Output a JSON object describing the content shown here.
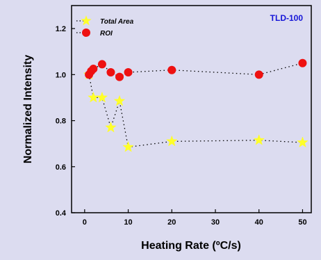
{
  "colors": {
    "background": "#dcdcf0",
    "total_area": "#ffff2a",
    "roi": "#ee1111",
    "annotation": "#1515d8"
  },
  "icons": {
    "total_area": "star-marker-icon",
    "roi": "circle-marker-icon"
  },
  "chart_data": {
    "type": "scatter",
    "xlabel": "Heating Rate (ºC/s)",
    "ylabel": "Normalized Intensity",
    "xlim": [
      -3,
      52
    ],
    "ylim": [
      0.4,
      1.3
    ],
    "xticks": [
      0,
      10,
      20,
      30,
      40,
      50
    ],
    "yticks": [
      0.4,
      0.6,
      0.8,
      1.0,
      1.2
    ],
    "xtick_labels": [
      "0",
      "10",
      "20",
      "30",
      "40",
      "50"
    ],
    "ytick_labels": [
      "0.4",
      "0.6",
      "0.8",
      "1.0",
      "1.2"
    ],
    "annotation": "TLD-100",
    "legend_position": "top-left",
    "grid": false,
    "line_style": "dotted",
    "series": [
      {
        "name": "Total Area",
        "marker": "star",
        "x": [
          1,
          2,
          4,
          6,
          8,
          10,
          20,
          40,
          50
        ],
        "y": [
          1.0,
          0.9,
          0.9,
          0.77,
          0.885,
          0.685,
          0.71,
          0.715,
          0.705
        ]
      },
      {
        "name": "ROI",
        "marker": "circle",
        "x": [
          1,
          1.5,
          2,
          4,
          6,
          8,
          10,
          20,
          40,
          50
        ],
        "y": [
          1.0,
          1.015,
          1.025,
          1.045,
          1.01,
          0.99,
          1.01,
          1.02,
          1.0,
          1.05
        ]
      }
    ]
  }
}
